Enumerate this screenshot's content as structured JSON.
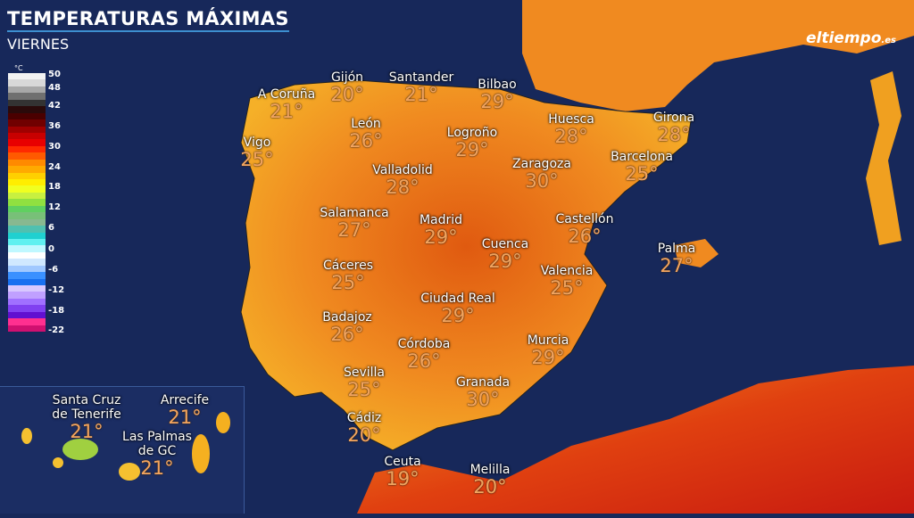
{
  "header": {
    "title": "TEMPERATURAS MÁXIMAS",
    "day": "VIERNES"
  },
  "brand": {
    "logo": "eltiempo",
    "logo_suffix": ".es"
  },
  "legend": {
    "unit": "°C",
    "ticks": [
      "50",
      "48",
      "42",
      "36",
      "30",
      "24",
      "18",
      "12",
      "6",
      "0",
      "-6",
      "-12",
      "-18",
      "-22"
    ],
    "colors": [
      "#f2f2f2",
      "#d8d8d8",
      "#a8a8a8",
      "#707070",
      "#333333",
      "#2a0a0a",
      "#4a0000",
      "#700000",
      "#a00000",
      "#c80000",
      "#e80000",
      "#ff2a00",
      "#ff5a00",
      "#ff8a00",
      "#ffaa00",
      "#ffd000",
      "#ffee00",
      "#f0ff20",
      "#c8f040",
      "#90e040",
      "#60d060",
      "#78c078",
      "#88b890",
      "#50c0b0",
      "#20d0d0",
      "#60f0f0",
      "#c0f8ff",
      "#ffffff",
      "#d0e8ff",
      "#a0c8ff",
      "#3a90ff",
      "#1870f0",
      "#d8c8ff",
      "#c0a0ff",
      "#a070ff",
      "#8040f0",
      "#6010d0",
      "#ff3090",
      "#d01070"
    ]
  },
  "cities": [
    {
      "name": "A Coruña",
      "temp": "21°"
    },
    {
      "name": "Gijón",
      "temp": "20°"
    },
    {
      "name": "Santander",
      "temp": "21°"
    },
    {
      "name": "Bilbao",
      "temp": "29°"
    },
    {
      "name": "León",
      "temp": "26°"
    },
    {
      "name": "Vigo",
      "temp": "25°"
    },
    {
      "name": "Logroño",
      "temp": "29°"
    },
    {
      "name": "Huesca",
      "temp": "28°"
    },
    {
      "name": "Girona",
      "temp": "28°"
    },
    {
      "name": "Valladolid",
      "temp": "28°"
    },
    {
      "name": "Zaragoza",
      "temp": "30°"
    },
    {
      "name": "Barcelona",
      "temp": "25°"
    },
    {
      "name": "Salamanca",
      "temp": "27°"
    },
    {
      "name": "Madrid",
      "temp": "29°"
    },
    {
      "name": "Castellón",
      "temp": "26°"
    },
    {
      "name": "Palma",
      "temp": "27°"
    },
    {
      "name": "Cuenca",
      "temp": "29°"
    },
    {
      "name": "Cáceres",
      "temp": "25°"
    },
    {
      "name": "Valencia",
      "temp": "25°"
    },
    {
      "name": "Ciudad Real",
      "temp": "29°"
    },
    {
      "name": "Badajoz",
      "temp": "26°"
    },
    {
      "name": "Córdoba",
      "temp": "26°"
    },
    {
      "name": "Murcia",
      "temp": "29°"
    },
    {
      "name": "Sevilla",
      "temp": "25°"
    },
    {
      "name": "Granada",
      "temp": "30°"
    },
    {
      "name": "Cádiz",
      "temp": "20°"
    },
    {
      "name": "Ceuta",
      "temp": "19°"
    },
    {
      "name": "Melilla",
      "temp": "20°"
    }
  ],
  "canarias": [
    {
      "name1": "Santa Cruz",
      "name2": "de Tenerife",
      "temp": "21°"
    },
    {
      "name1": "Arrecife",
      "name2": "",
      "temp": "21°"
    },
    {
      "name1": "Las Palmas",
      "name2": "de GC",
      "temp": "21°"
    }
  ]
}
